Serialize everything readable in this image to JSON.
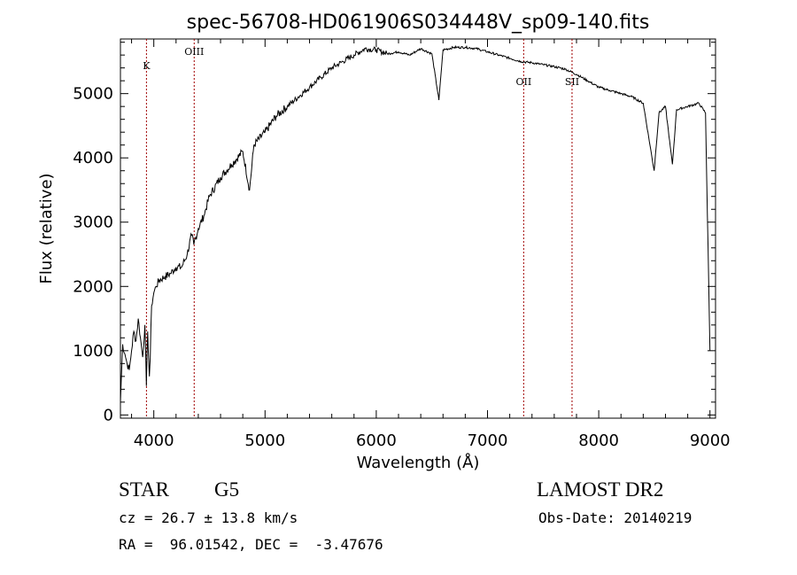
{
  "chart_data": {
    "type": "line",
    "title": "spec-56708-HD061906S034448V_sp09-140.fits",
    "xlabel": "Wavelength (Å)",
    "ylabel": "Flux (relative)",
    "xlim": [
      3700,
      9050
    ],
    "ylim": [
      -50,
      5850
    ],
    "grid": false,
    "legend": "none",
    "line_color": "#000000",
    "xticks": [
      4000,
      5000,
      6000,
      7000,
      8000,
      9000
    ],
    "yticks": [
      0,
      1000,
      2000,
      3000,
      4000,
      5000
    ],
    "x": [
      3700,
      3720,
      3740,
      3760,
      3780,
      3800,
      3820,
      3840,
      3860,
      3880,
      3900,
      3920,
      3933,
      3945,
      3960,
      3968,
      3980,
      4000,
      4020,
      4050,
      4100,
      4150,
      4200,
      4250,
      4300,
      4340,
      4360,
      4400,
      4450,
      4500,
      4600,
      4700,
      4800,
      4861,
      4900,
      5000,
      5100,
      5200,
      5300,
      5400,
      5500,
      5600,
      5700,
      5800,
      5900,
      6000,
      6100,
      6200,
      6300,
      6400,
      6500,
      6563,
      6600,
      6700,
      6800,
      6900,
      7000,
      7100,
      7200,
      7300,
      7400,
      7500,
      7600,
      7700,
      7800,
      7900,
      8000,
      8100,
      8200,
      8300,
      8400,
      8498,
      8542,
      8600,
      8662,
      8700,
      8800,
      8900,
      8960,
      9000
    ],
    "y": [
      200,
      1100,
      950,
      800,
      700,
      1000,
      1300,
      1150,
      1500,
      1200,
      900,
      1400,
      450,
      1300,
      600,
      900,
      1700,
      1900,
      2000,
      2100,
      2150,
      2200,
      2300,
      2300,
      2500,
      2800,
      2650,
      2900,
      3100,
      3400,
      3700,
      3900,
      4100,
      3500,
      4200,
      4400,
      4650,
      4800,
      4950,
      5100,
      5250,
      5400,
      5500,
      5600,
      5700,
      5680,
      5620,
      5650,
      5600,
      5700,
      5620,
      4900,
      5680,
      5720,
      5720,
      5700,
      5650,
      5600,
      5550,
      5500,
      5480,
      5450,
      5420,
      5380,
      5300,
      5200,
      5100,
      5050,
      5000,
      4950,
      4850,
      3800,
      4700,
      4800,
      3900,
      4750,
      4800,
      4850,
      4700,
      1000
    ],
    "annotations": [
      {
        "label": "K",
        "x": 3934
      },
      {
        "label": "OIII",
        "x": 4363
      },
      {
        "label": "OII",
        "x": 7325
      },
      {
        "label": "SII",
        "x": 7760
      }
    ]
  },
  "info": {
    "object_class": "STAR",
    "subclass": "G5",
    "survey": "LAMOST DR2",
    "cz": "cz = 26.7 ± 13.8 km/s",
    "obs_date": "Obs-Date: 20140219",
    "coords": "RA =  96.01542, DEC =  -3.47676"
  }
}
